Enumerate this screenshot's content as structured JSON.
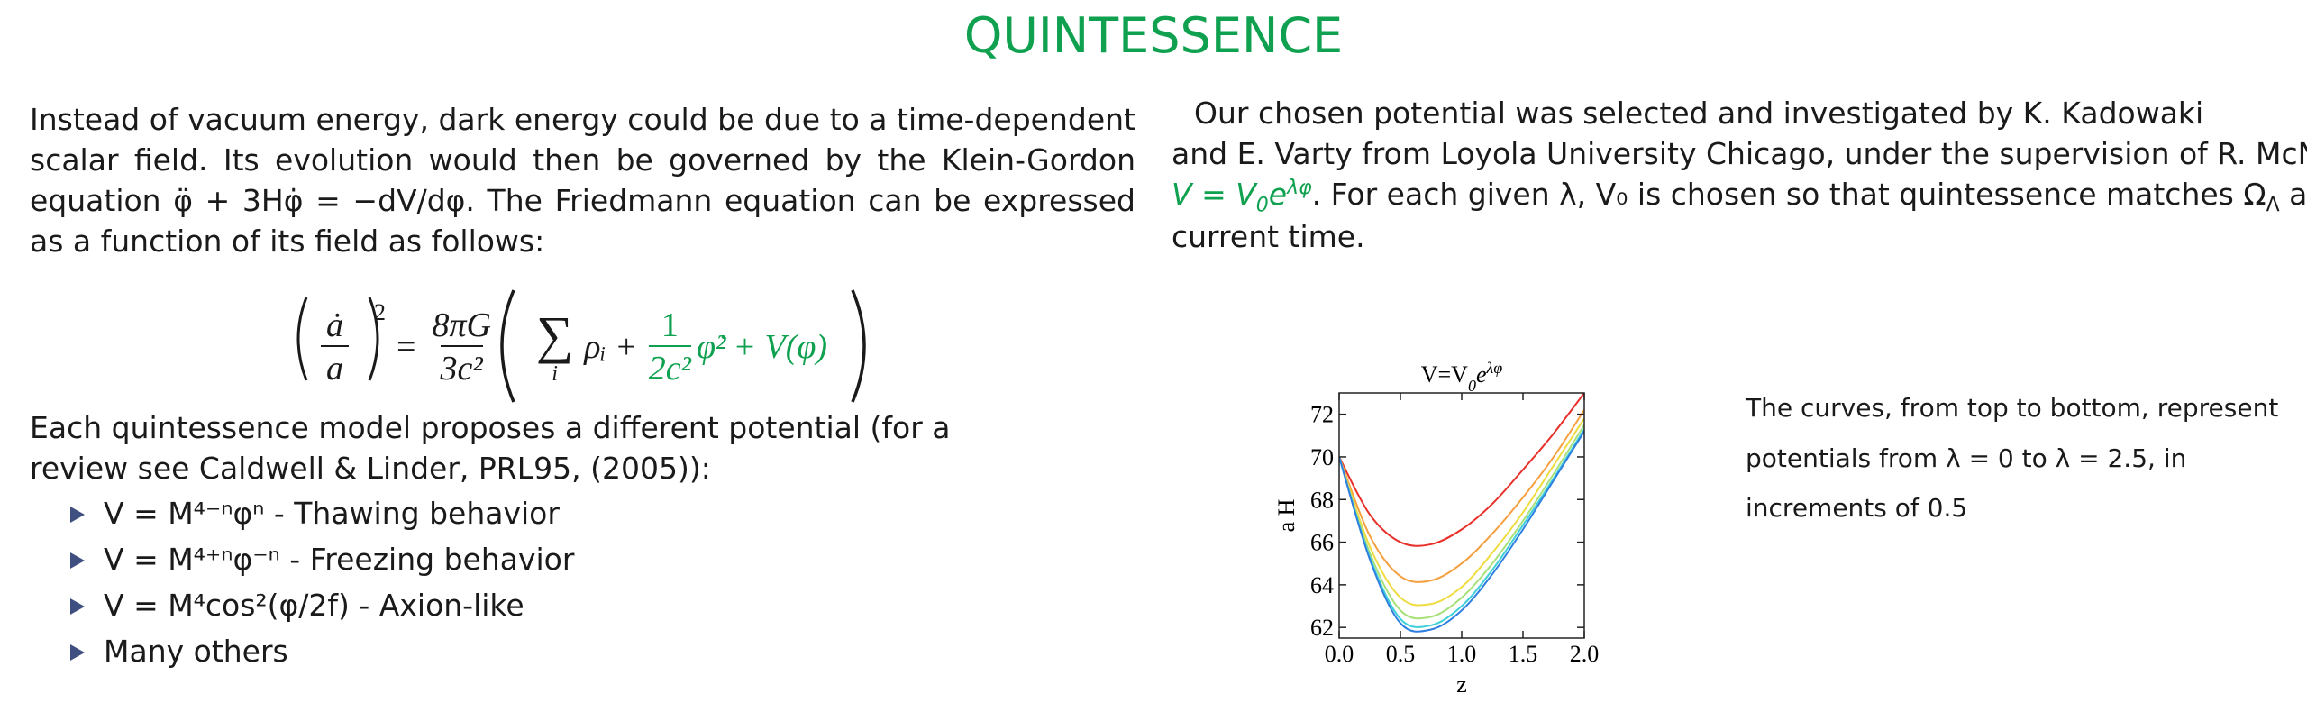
{
  "header": {
    "title": "QUINTESSENCE"
  },
  "left": {
    "paragraph": "Instead of vacuum energy, dark energy could be due to a time-dependent scalar field.  Its evolution would then be governed by the Klein-Gordon equation φ̈ + 3Hφ̇ = −dV/dφ. The Friedmann equation can be expressed as a function of its field as follows:",
    "equation": {
      "lhs_num": "ȧ",
      "lhs_den": "a",
      "lhs_exp": "2",
      "equals": "=",
      "coef_num": "8πG",
      "coef_den": "3c²",
      "sum": "∑",
      "sum_index": "i",
      "term1": "ρᵢ +",
      "kin_num": "1",
      "kin_den": "2c²",
      "kin_field": "φ̇²",
      "potential": "+ V(φ)"
    },
    "intro": "Each quintessence model proposes a different potential (for a review see Caldwell & Linder, PRL95, (2005)):",
    "bullets": [
      "V = M⁴⁻ⁿφⁿ - Thawing behavior",
      "V = M⁴⁺ⁿφ⁻ⁿ - Freezing behavior",
      "V = M⁴cos²(φ/2f) - Axion-like",
      "Many others"
    ]
  },
  "right": {
    "line1": "Our chosen potential was selected and investigated by K. Kadowaki",
    "line2": "and E. Varty from Loyola University Chicago, under the supervision of R. McNees:",
    "formula": {
      "lhs": "V = V",
      "sub": "0",
      "base": "e",
      "exp": "λφ"
    },
    "line3a": ". For each given λ, V₀ is chosen so that quintessence matches Ω",
    "line3_sub": "Λ",
    "line3b": " at",
    "line4": "current time.",
    "caption": [
      "The curves, from top to bottom, represent",
      "potentials from λ = 0 to λ = 2.5, in",
      "increments of 0.5"
    ]
  },
  "chart_data": {
    "type": "line",
    "title": {
      "lhs": "V=V",
      "sub": "0",
      "base": "e",
      "exp": "λφ"
    },
    "xlabel": "z",
    "ylabel": "a H",
    "x": [
      0,
      0.25,
      0.5,
      0.75,
      1.0,
      1.25,
      1.5,
      1.75,
      2.0
    ],
    "series": [
      {
        "color": "#e8302a",
        "values": [
          70,
          67.3,
          66.0,
          65.9,
          66.6,
          67.8,
          69.4,
          71.1,
          73.0
        ]
      },
      {
        "color": "#f5a040",
        "values": [
          70,
          66.3,
          64.4,
          64.2,
          65.0,
          66.4,
          68.1,
          70.0,
          72.2
        ]
      },
      {
        "color": "#eedc40",
        "values": [
          70,
          65.8,
          63.4,
          63.1,
          63.9,
          65.5,
          67.4,
          69.6,
          71.8
        ]
      },
      {
        "color": "#a8e07a",
        "values": [
          70,
          65.5,
          62.8,
          62.5,
          63.4,
          65.0,
          67.0,
          69.2,
          71.5
        ]
      },
      {
        "color": "#40d0d8",
        "values": [
          70,
          65.3,
          62.4,
          62.1,
          63.0,
          64.7,
          66.8,
          69.0,
          71.3
        ]
      },
      {
        "color": "#2f7fe0",
        "values": [
          70,
          65.2,
          62.2,
          61.9,
          62.8,
          64.5,
          66.6,
          68.9,
          71.2
        ]
      }
    ],
    "xlim": [
      0,
      2
    ],
    "ylim": [
      61.5,
      73
    ],
    "xticks": [
      {
        "value": 0,
        "label": "0.0"
      },
      {
        "value": 0.5,
        "label": "0.5"
      },
      {
        "value": 1,
        "label": "1.0"
      },
      {
        "value": 1.5,
        "label": "1.5"
      },
      {
        "value": 2,
        "label": "2.0"
      }
    ],
    "yticks": [
      62,
      64,
      66,
      68,
      70,
      72
    ],
    "grid": false
  }
}
